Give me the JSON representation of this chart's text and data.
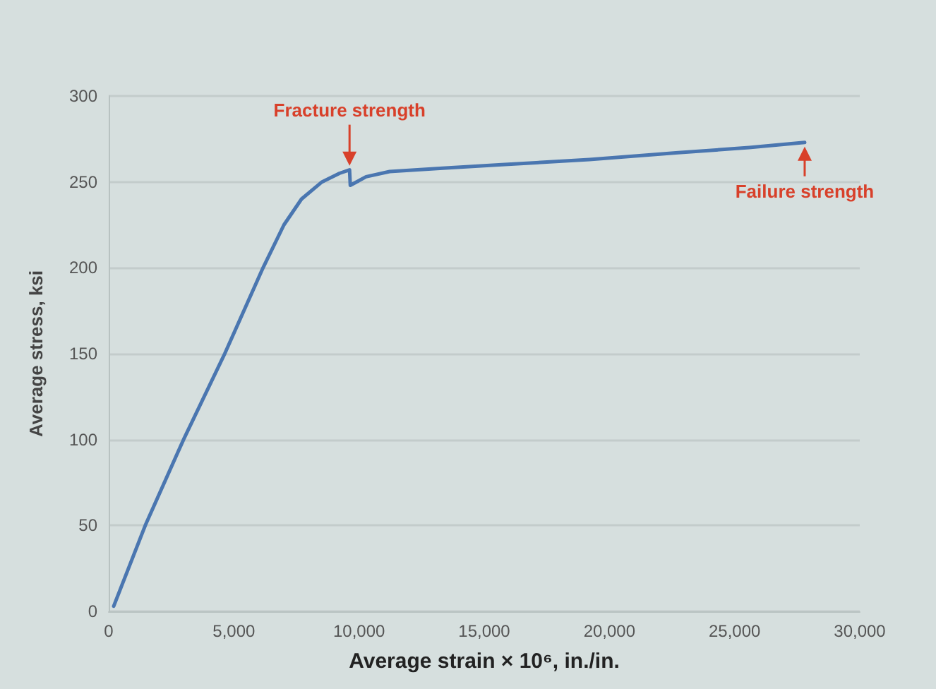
{
  "chart_data": {
    "type": "line",
    "xlabel": "Average strain × 10⁶, in./in.",
    "ylabel": "Average stress, ksi",
    "x": [
      200,
      1460,
      2990,
      4635,
      6165,
      7000,
      7700,
      8520,
      9220,
      9620,
      9650,
      10280,
      11220,
      13340,
      15700,
      19200,
      22750,
      25580,
      27800
    ],
    "series": [
      {
        "color": "#4a76b0",
        "values": [
          3,
          50,
          100,
          150,
          200,
          225,
          240,
          250,
          255,
          257,
          248,
          253,
          256,
          258,
          260,
          263,
          267,
          270,
          273
        ]
      }
    ],
    "xlim": [
      0,
      30000
    ],
    "xticks": [
      {
        "value": 0,
        "label": "0"
      },
      {
        "value": 5000,
        "label": "5,000"
      },
      {
        "value": 10000,
        "label": "10,000"
      },
      {
        "value": 15000,
        "label": "15,000"
      },
      {
        "value": 20000,
        "label": "20,000"
      },
      {
        "value": 25000,
        "label": "25,000"
      },
      {
        "value": 30000,
        "label": "30,000"
      }
    ],
    "ylim": [
      0,
      300
    ],
    "yticks": [
      0,
      50,
      100,
      150,
      200,
      250,
      300
    ],
    "grid": "y",
    "marker": "none",
    "line_style": "solid",
    "annotations": [
      {
        "text": "Fracture strength",
        "x": 9620,
        "y": 257
      },
      {
        "text": "Failure strength",
        "x": 27800,
        "y": 273
      }
    ]
  }
}
